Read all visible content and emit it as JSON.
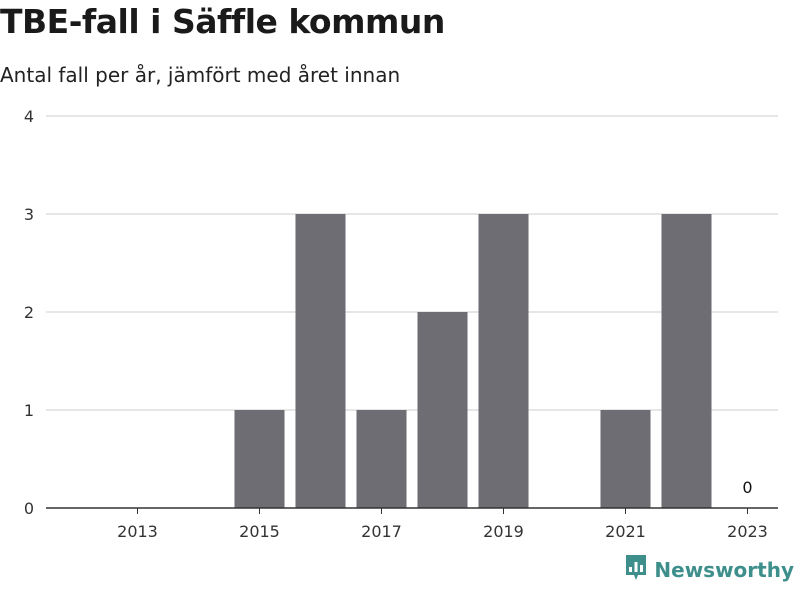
{
  "header": {
    "title": "TBE-fall i Säffle kommun",
    "subtitle": "Antal fall per år, jämfört med året innan"
  },
  "brand": {
    "name": "Newsworthy",
    "color": "#3e8f8c",
    "icon": "chart-logo-icon"
  },
  "colors": {
    "bar": "#6d6d73",
    "grid": "#dddddd",
    "baseline": "#333333"
  },
  "chart_data": {
    "type": "bar",
    "categories": [
      "2012",
      "2013",
      "2014",
      "2015",
      "2016",
      "2017",
      "2018",
      "2019",
      "2020",
      "2021",
      "2022",
      "2023"
    ],
    "values": [
      0,
      0,
      0,
      1,
      3,
      1,
      2,
      3,
      0,
      1,
      3,
      0
    ],
    "x_tick_labels": [
      "2013",
      "2015",
      "2017",
      "2019",
      "2021",
      "2023"
    ],
    "y_ticks": [
      0,
      1,
      2,
      3,
      4
    ],
    "ylim": [
      0,
      4
    ],
    "data_labels": [
      {
        "category": "2023",
        "text": "0"
      }
    ],
    "grid": true,
    "xlabel": "",
    "ylabel": ""
  }
}
